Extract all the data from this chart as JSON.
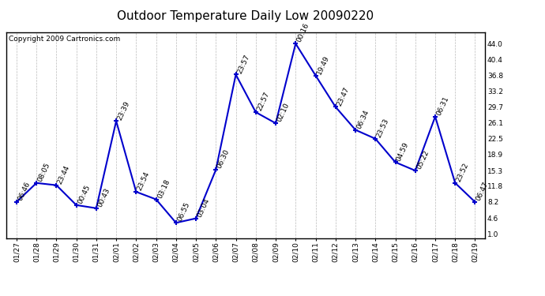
{
  "title": "Outdoor Temperature Daily Low 20090220",
  "copyright": "Copyright 2009 Cartronics.com",
  "line_color": "#0000cc",
  "background_color": "#ffffff",
  "plot_bg_color": "#ffffff",
  "grid_color": "#bbbbbb",
  "dates": [
    "01/27",
    "01/28",
    "01/29",
    "01/30",
    "01/31",
    "02/01",
    "02/02",
    "02/03",
    "02/04",
    "02/05",
    "02/06",
    "02/07",
    "02/08",
    "02/09",
    "02/10",
    "02/11",
    "02/12",
    "02/13",
    "02/14",
    "02/15",
    "02/16",
    "02/17",
    "02/18",
    "02/19"
  ],
  "values": [
    8.2,
    12.5,
    12.0,
    7.5,
    6.8,
    26.5,
    10.5,
    8.8,
    3.5,
    4.5,
    15.5,
    37.0,
    28.5,
    26.0,
    44.0,
    36.8,
    29.7,
    24.5,
    22.5,
    17.2,
    15.3,
    27.5,
    12.5,
    8.2
  ],
  "time_labels": [
    "06:46",
    "08:05",
    "23:44",
    "00:45",
    "00:43",
    "23:39",
    "23:54",
    "03:18",
    "06:55",
    "03:04",
    "06:30",
    "23:57",
    "22:57",
    "02:10",
    "00:16",
    "19:49",
    "23:47",
    "06:34",
    "23:53",
    "04:59",
    "05:22",
    "06:31",
    "23:52",
    "06:47"
  ],
  "yticks": [
    1.0,
    4.6,
    8.2,
    11.8,
    15.3,
    18.9,
    22.5,
    26.1,
    29.7,
    33.2,
    36.8,
    40.4,
    44.0
  ],
  "ylim_low": 0.0,
  "ylim_high": 46.5,
  "title_fontsize": 11,
  "label_fontsize": 6.5,
  "copyright_fontsize": 6.5,
  "marker_size": 5,
  "linewidth": 1.5
}
